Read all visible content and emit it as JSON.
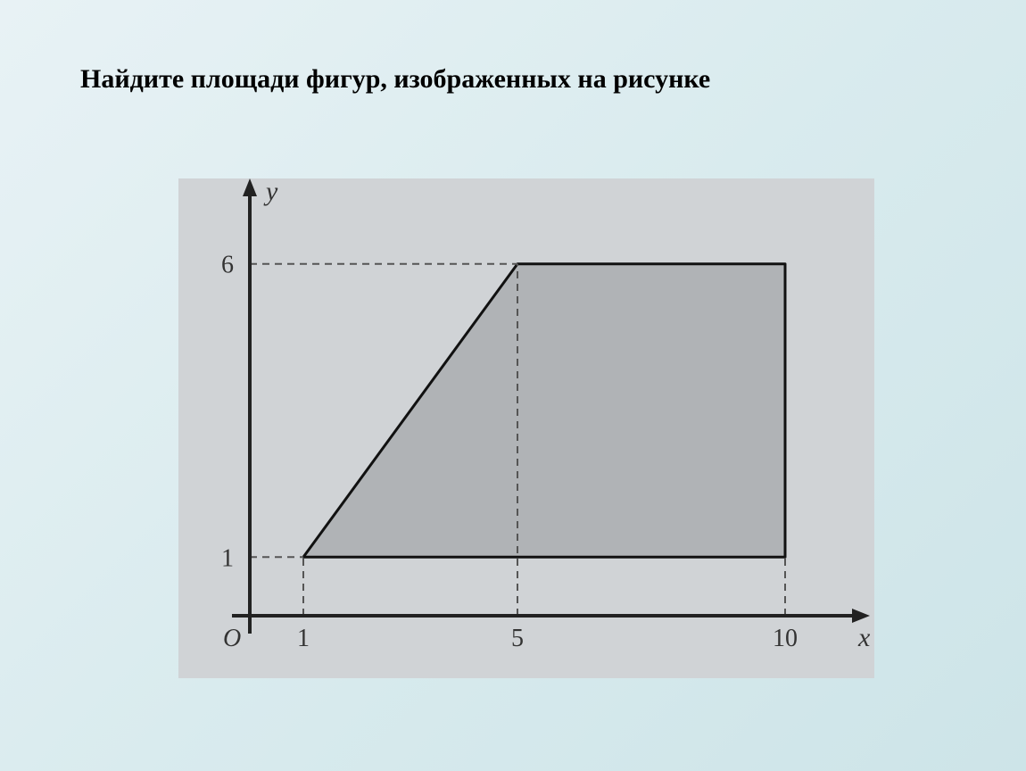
{
  "title": "Найдите площади фигур, изображенных на рисунке",
  "chart": {
    "type": "geometry-area",
    "background_color": "#d0d3d6",
    "inner_bg_color": "#cfcfcf",
    "shape_fill": "#b0b3b6",
    "axis_color": "#222222",
    "axis_width": 4,
    "shape_stroke": "#111111",
    "shape_stroke_width": 3,
    "dash_color": "#555555",
    "dash_width": 2,
    "dash_pattern": "8,6",
    "x_axis_label": "x",
    "y_axis_label": "y",
    "origin_label": "O",
    "x_ticks": [
      1,
      5,
      10
    ],
    "y_ticks": [
      1,
      6
    ],
    "xlim": [
      0,
      11
    ],
    "ylim": [
      0,
      7
    ],
    "shape_points": [
      {
        "x": 1,
        "y": 1
      },
      {
        "x": 5,
        "y": 6
      },
      {
        "x": 10,
        "y": 6
      },
      {
        "x": 10,
        "y": 1
      }
    ],
    "dashed_lines": [
      {
        "from": {
          "x": 0,
          "y": 6
        },
        "to": {
          "x": 5,
          "y": 6
        }
      },
      {
        "from": {
          "x": 1,
          "y": 0
        },
        "to": {
          "x": 1,
          "y": 1
        }
      },
      {
        "from": {
          "x": 5,
          "y": 0
        },
        "to": {
          "x": 5,
          "y": 6
        }
      },
      {
        "from": {
          "x": 10,
          "y": 0
        },
        "to": {
          "x": 10,
          "y": 1
        }
      },
      {
        "from": {
          "x": 0,
          "y": 1
        },
        "to": {
          "x": 1,
          "y": 1
        }
      }
    ],
    "label_fontsize": 28,
    "axis_label_fontsize": 30
  }
}
